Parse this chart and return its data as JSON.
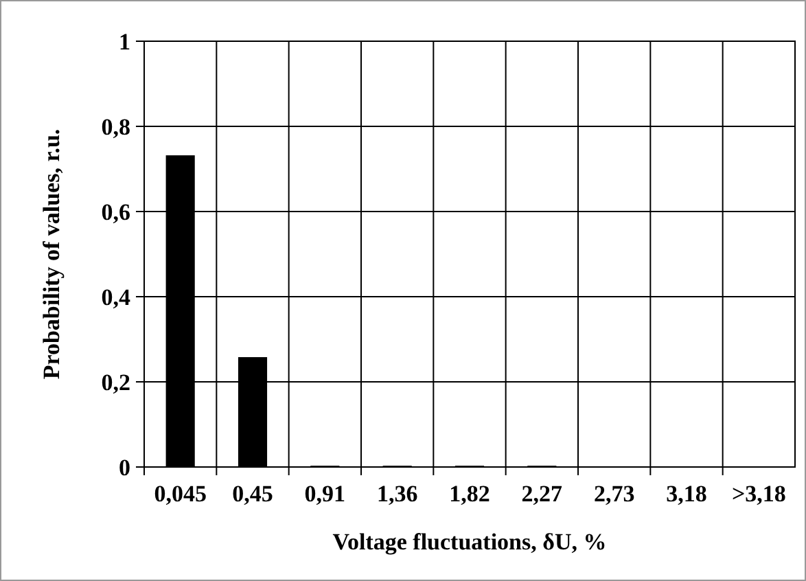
{
  "chart_data": {
    "type": "bar",
    "xlabel": "Voltage fluctuations, δU, %",
    "ylabel": "Probability of values, r.u.",
    "categories": [
      "0,045",
      "0,45",
      "0,91",
      "1,36",
      "1,82",
      "2,27",
      "2,73",
      "3,18",
      ">3,18"
    ],
    "values": [
      0.732,
      0.258,
      0.003,
      0.003,
      0.003,
      0.003,
      0,
      0,
      0
    ],
    "color": "#000000",
    "ylim": [
      0,
      1
    ],
    "yticks": [
      {
        "value": 0,
        "label": "0"
      },
      {
        "value": 0.2,
        "label": "0,2"
      },
      {
        "value": 0.4,
        "label": "0,4"
      },
      {
        "value": 0.6,
        "label": "0,6"
      },
      {
        "value": 0.8,
        "label": "0,8"
      },
      {
        "value": 1,
        "label": "1"
      }
    ],
    "grid": true
  }
}
